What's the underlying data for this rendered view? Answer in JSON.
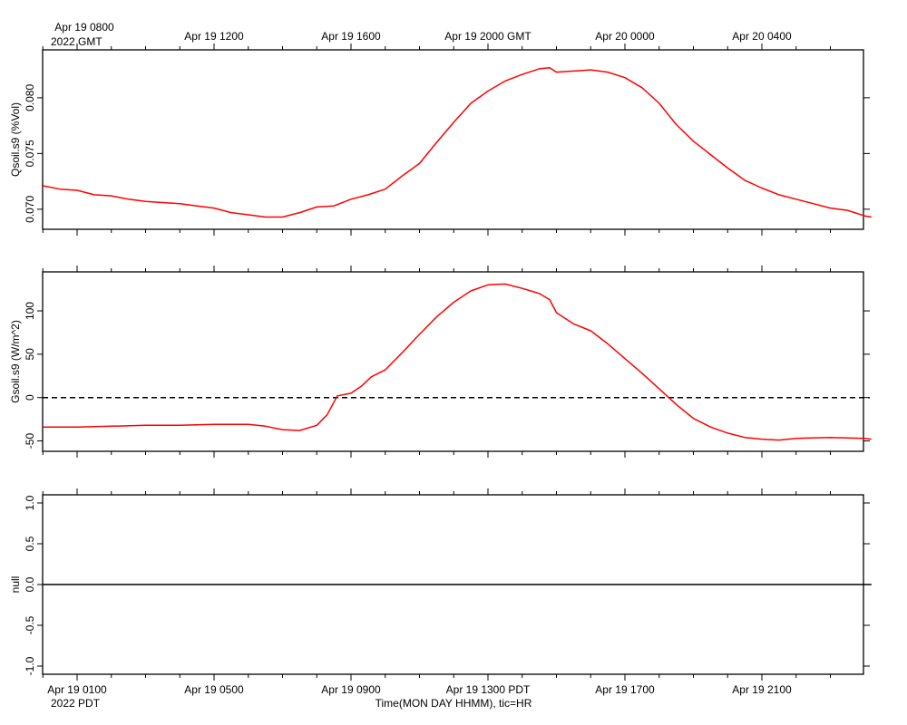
{
  "top_axis": {
    "year_label": "2022 GMT",
    "tick_labels": [
      "Apr 19 0800",
      "Apr 19 1200",
      "Apr 19 1600",
      "Apr 19 2000 GMT",
      "Apr 20 0000",
      "Apr 20 0400"
    ]
  },
  "bottom_axis": {
    "year_label": "2022 PDT",
    "title": "Time(MON DAY HHMM), tic=HR",
    "tick_labels": [
      "Apr 19 0100",
      "Apr 19 0500",
      "Apr 19 0900",
      "Apr 19 1300 PDT",
      "Apr 19 1700",
      "Apr 19 2100"
    ]
  },
  "colors": {
    "series": "#ff0000",
    "axes": "#000000",
    "zero_line": "#000000"
  },
  "chart_data": [
    {
      "type": "line",
      "ylabel": "Qsoil.s9 (%Vol)",
      "x_unit": "hours since Apr 19 0000 PDT",
      "xlim": [
        0.0,
        24.2
      ],
      "ylim": [
        0.0682,
        0.0843
      ],
      "yticks": [
        0.07,
        0.075,
        0.08
      ],
      "ytick_labels": [
        "0.070",
        "0.075",
        "0.080"
      ],
      "series": [
        {
          "x": [
            0.0,
            0.5,
            1.0,
            1.5,
            2.0,
            2.5,
            3.0,
            3.5,
            4.0,
            4.5,
            5.0,
            5.5,
            6.0,
            6.5,
            7.0,
            7.5,
            8.0,
            8.5,
            9.0,
            9.5,
            10.0,
            10.5,
            11.0,
            11.5,
            12.0,
            12.5,
            13.0,
            13.5,
            14.0,
            14.5,
            14.8,
            15.0,
            15.5,
            16.0,
            16.5,
            17.0,
            17.5,
            18.0,
            18.5,
            19.0,
            19.5,
            20.0,
            20.5,
            21.0,
            21.5,
            22.0,
            22.5,
            23.0,
            23.5,
            24.0,
            24.2
          ],
          "y": [
            0.0721,
            0.0718,
            0.0717,
            0.0713,
            0.0712,
            0.0709,
            0.0707,
            0.0706,
            0.0705,
            0.0703,
            0.0701,
            0.0697,
            0.0695,
            0.0693,
            0.0693,
            0.0697,
            0.0702,
            0.0703,
            0.0709,
            0.0713,
            0.0718,
            0.073,
            0.0741,
            0.076,
            0.0778,
            0.0795,
            0.0806,
            0.0815,
            0.0821,
            0.0826,
            0.0827,
            0.0823,
            0.0824,
            0.0825,
            0.0823,
            0.0818,
            0.0809,
            0.0795,
            0.0776,
            0.0761,
            0.0749,
            0.0737,
            0.0726,
            0.0719,
            0.0713,
            0.0709,
            0.0705,
            0.0701,
            0.0699,
            0.0694,
            0.0693
          ]
        }
      ]
    },
    {
      "type": "line",
      "ylabel": "Gsoil.s9 (W/m^2)",
      "x_unit": "hours since Apr 19 0000 PDT",
      "xlim": [
        0.0,
        24.2
      ],
      "ylim": [
        -62,
        145
      ],
      "yticks": [
        -50,
        0,
        50,
        100
      ],
      "ytick_labels": [
        "-50",
        "0",
        "50",
        "100"
      ],
      "reference_line": {
        "y": 0,
        "style": "dashed"
      },
      "series": [
        {
          "x": [
            0.0,
            1.0,
            2.0,
            3.0,
            4.0,
            5.0,
            6.0,
            6.5,
            7.0,
            7.5,
            8.0,
            8.3,
            8.6,
            9.0,
            9.3,
            9.6,
            10.0,
            10.5,
            11.0,
            11.5,
            12.0,
            12.5,
            13.0,
            13.5,
            14.0,
            14.5,
            14.8,
            15.0,
            15.5,
            16.0,
            16.5,
            17.0,
            17.5,
            18.0,
            18.5,
            19.0,
            19.5,
            20.0,
            20.5,
            21.0,
            21.5,
            22.0,
            23.0,
            24.0,
            24.2
          ],
          "y": [
            -34,
            -34,
            -33,
            -32,
            -32,
            -31,
            -31,
            -33,
            -37,
            -38,
            -32,
            -20,
            2,
            5,
            13,
            24,
            32,
            52,
            73,
            93,
            110,
            123,
            130,
            131,
            126,
            120,
            113,
            98,
            85,
            77,
            62,
            45,
            28,
            10,
            -8,
            -24,
            -34,
            -41,
            -46,
            -48,
            -49,
            -47,
            -46,
            -47,
            -48
          ]
        }
      ]
    },
    {
      "type": "line",
      "ylabel": "null",
      "x_unit": "hours since Apr 19 0000 PDT",
      "xlim": [
        0.0,
        24.2
      ],
      "ylim": [
        -1.1,
        1.1
      ],
      "yticks": [
        -1.0,
        -0.5,
        0.0,
        0.5,
        1.0
      ],
      "ytick_labels": [
        "-1.0",
        "-0.5",
        "0.0",
        "0.5",
        "1.0"
      ],
      "series": [
        {
          "x": [
            0.0,
            24.2
          ],
          "y": [
            0.0,
            0.0
          ]
        }
      ]
    }
  ]
}
